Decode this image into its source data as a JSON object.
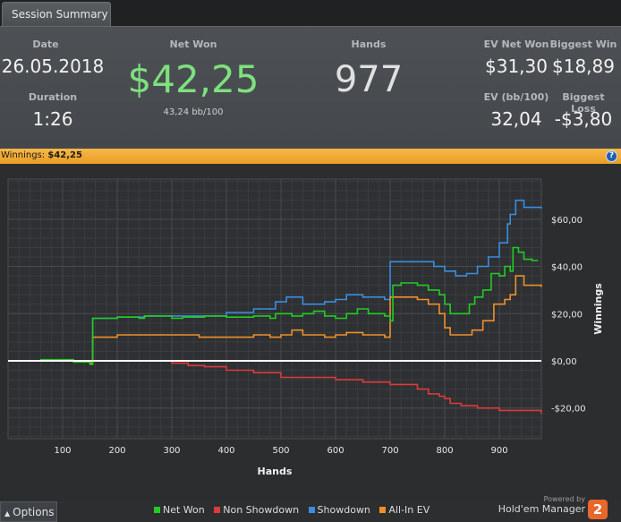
{
  "tab": {
    "label": "Session Summary"
  },
  "summary": {
    "date_label": "Date",
    "date": "26.05.2018",
    "duration_label": "Duration",
    "duration": "1:26",
    "net_won_label": "Net Won",
    "net_won": "$42,25",
    "bb_per_100": "43,24 bb/100",
    "hands_label": "Hands",
    "hands": "977",
    "ev_net_won_label": "EV Net Won",
    "ev_net_won": "$31,30",
    "ev_bb_label": "EV (bb/100)",
    "ev_bb": "32,04",
    "biggest_win_label": "Biggest Win",
    "biggest_win": "$18,89",
    "biggest_loss_label": "Biggest Loss",
    "biggest_loss": "-$3,80"
  },
  "winbar": {
    "label": "Winnings:",
    "value": "$42,25",
    "help": "?"
  },
  "colors": {
    "net_won": "#22cc22",
    "non_showdown": "#dd3b3b",
    "showdown": "#3a8ee0",
    "allin_ev": "#f0902a",
    "net_won_text": "#7ee07e",
    "accent": "#f0a530"
  },
  "chart_data": {
    "type": "line",
    "title": "",
    "xlabel": "Hands",
    "ylabel": "Winnings",
    "xlim": [
      0,
      977
    ],
    "ylim": [
      -33,
      77
    ],
    "x_ticks": [
      100,
      200,
      300,
      400,
      500,
      600,
      700,
      800,
      900
    ],
    "y_ticks": [
      -20,
      0,
      20,
      40,
      60
    ],
    "y_tick_labels": [
      "-$20,00",
      "$0,00",
      "$20,00",
      "$40,00",
      "$60,00"
    ],
    "grid": true,
    "legend_position": "bottom",
    "series": [
      {
        "name": "Net Won",
        "color": "#22cc22",
        "points": [
          [
            0,
            0
          ],
          [
            60,
            0.5
          ],
          [
            120,
            -0.5
          ],
          [
            150,
            -1.5
          ],
          [
            155,
            18
          ],
          [
            200,
            18.5
          ],
          [
            240,
            18
          ],
          [
            250,
            19
          ],
          [
            300,
            18
          ],
          [
            320,
            18.5
          ],
          [
            360,
            19
          ],
          [
            400,
            18.5
          ],
          [
            450,
            19
          ],
          [
            480,
            18
          ],
          [
            490,
            20
          ],
          [
            520,
            19
          ],
          [
            540,
            20
          ],
          [
            560,
            21
          ],
          [
            580,
            19
          ],
          [
            600,
            18
          ],
          [
            620,
            20
          ],
          [
            640,
            22
          ],
          [
            660,
            20
          ],
          [
            690,
            19
          ],
          [
            700,
            17
          ],
          [
            705,
            32
          ],
          [
            720,
            33
          ],
          [
            750,
            32
          ],
          [
            770,
            30
          ],
          [
            790,
            28
          ],
          [
            800,
            24
          ],
          [
            810,
            20
          ],
          [
            830,
            20
          ],
          [
            845,
            24
          ],
          [
            855,
            27
          ],
          [
            870,
            30
          ],
          [
            885,
            37
          ],
          [
            900,
            36
          ],
          [
            910,
            40
          ],
          [
            920,
            38
          ],
          [
            925,
            48
          ],
          [
            935,
            46
          ],
          [
            945,
            43
          ],
          [
            960,
            42.5
          ],
          [
            970,
            42.25
          ]
        ]
      },
      {
        "name": "Non Showdown",
        "color": "#dd3b3b",
        "points": [
          [
            0,
            0
          ],
          [
            100,
            0
          ],
          [
            200,
            0
          ],
          [
            300,
            -1
          ],
          [
            330,
            -2
          ],
          [
            360,
            -2.5
          ],
          [
            400,
            -4
          ],
          [
            450,
            -5
          ],
          [
            500,
            -7
          ],
          [
            550,
            -7
          ],
          [
            600,
            -8
          ],
          [
            650,
            -9
          ],
          [
            700,
            -10
          ],
          [
            750,
            -12
          ],
          [
            770,
            -14
          ],
          [
            790,
            -15
          ],
          [
            800,
            -16
          ],
          [
            810,
            -18
          ],
          [
            830,
            -19
          ],
          [
            860,
            -20
          ],
          [
            900,
            -21
          ],
          [
            940,
            -21
          ],
          [
            977,
            -22.5
          ]
        ]
      },
      {
        "name": "Showdown",
        "color": "#3a8ee0",
        "points": [
          [
            0,
            0
          ],
          [
            100,
            0
          ],
          [
            150,
            0
          ],
          [
            155,
            18
          ],
          [
            200,
            18.5
          ],
          [
            250,
            19
          ],
          [
            300,
            19
          ],
          [
            400,
            20.5
          ],
          [
            450,
            22
          ],
          [
            490,
            25
          ],
          [
            510,
            27
          ],
          [
            540,
            24
          ],
          [
            580,
            25
          ],
          [
            600,
            26
          ],
          [
            620,
            28
          ],
          [
            650,
            27
          ],
          [
            690,
            26
          ],
          [
            700,
            42
          ],
          [
            750,
            42
          ],
          [
            770,
            42
          ],
          [
            780,
            40
          ],
          [
            800,
            38
          ],
          [
            820,
            36
          ],
          [
            840,
            37
          ],
          [
            860,
            40
          ],
          [
            880,
            44
          ],
          [
            900,
            50
          ],
          [
            915,
            58
          ],
          [
            920,
            62
          ],
          [
            930,
            68
          ],
          [
            945,
            65
          ],
          [
            977,
            64.5
          ]
        ]
      },
      {
        "name": "All-In EV",
        "color": "#f0902a",
        "points": [
          [
            0,
            0
          ],
          [
            100,
            0
          ],
          [
            150,
            -1
          ],
          [
            155,
            10
          ],
          [
            200,
            11
          ],
          [
            250,
            11
          ],
          [
            300,
            11
          ],
          [
            350,
            10
          ],
          [
            400,
            10
          ],
          [
            450,
            11
          ],
          [
            480,
            10
          ],
          [
            500,
            11
          ],
          [
            520,
            13
          ],
          [
            540,
            11
          ],
          [
            580,
            10
          ],
          [
            600,
            11
          ],
          [
            620,
            12
          ],
          [
            650,
            11
          ],
          [
            690,
            10
          ],
          [
            700,
            27
          ],
          [
            720,
            27
          ],
          [
            750,
            26
          ],
          [
            770,
            24
          ],
          [
            790,
            20
          ],
          [
            800,
            14
          ],
          [
            810,
            11
          ],
          [
            830,
            11
          ],
          [
            850,
            13
          ],
          [
            870,
            17
          ],
          [
            890,
            24
          ],
          [
            910,
            26
          ],
          [
            920,
            28
          ],
          [
            930,
            36
          ],
          [
            945,
            32
          ],
          [
            977,
            31.3
          ]
        ]
      },
      {
        "name": "Zero",
        "color": "#ffffff",
        "points": [
          [
            0,
            0
          ],
          [
            977,
            0
          ]
        ]
      }
    ]
  },
  "footer": {
    "options_label": "Options",
    "legend": [
      {
        "label": "Net Won",
        "color": "#22cc22"
      },
      {
        "label": "Non Showdown",
        "color": "#dd3b3b"
      },
      {
        "label": "Showdown",
        "color": "#3a8ee0"
      },
      {
        "label": "All-In EV",
        "color": "#f0902a"
      }
    ],
    "powered_by": "Powered by",
    "brand": "Hold'em Manager",
    "logo_number": "2"
  }
}
